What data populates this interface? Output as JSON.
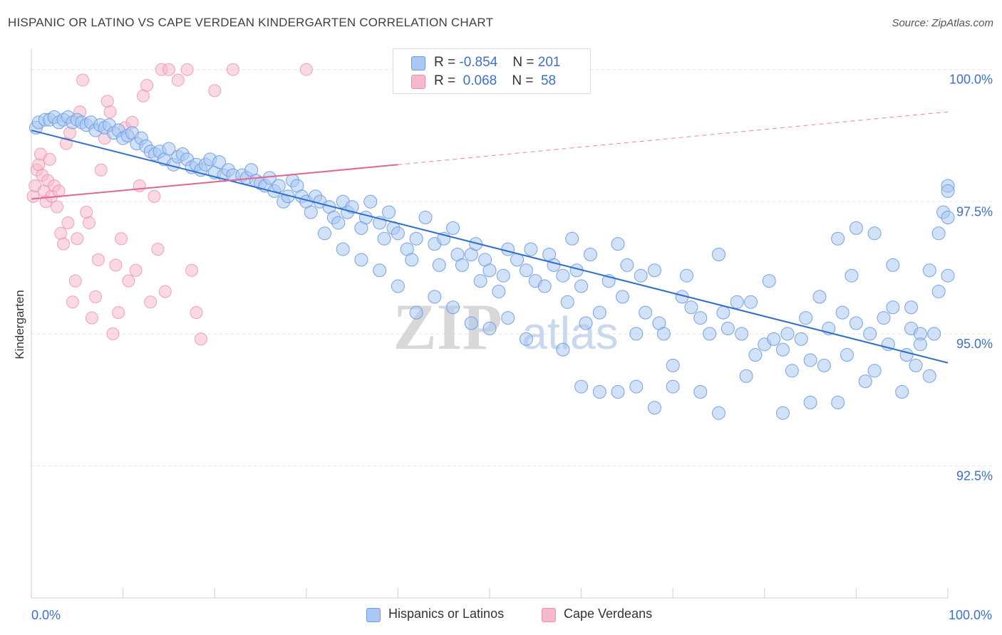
{
  "title": "HISPANIC OR LATINO VS CAPE VERDEAN KINDERGARTEN CORRELATION CHART",
  "source": "Source: ZipAtlas.com",
  "watermark": {
    "zip": "ZIP",
    "atlas": "atlas"
  },
  "legend": {
    "rows": [
      {
        "r_label": "R = ",
        "r_value": "-0.854",
        "n_label": "N = ",
        "n_value": "201"
      },
      {
        "r_label": "R = ",
        "r_value": " 0.068",
        "n_label": "N = ",
        "n_value": " 58"
      }
    ]
  },
  "bottom_legend": [
    "Hispanics or Latinos",
    "Cape Verdeans"
  ],
  "colors": {
    "blue_fill": "#a9c8f3",
    "blue_stroke": "#6c9ae0",
    "blue_line": "#2e6ecf",
    "pink_fill": "#f6b9cb",
    "pink_stroke": "#ec8eab",
    "pink_line": "#e06791",
    "tick_label": "#3d6fd0",
    "grid": "#e3e3e3"
  },
  "chart_data": {
    "type": "scatter",
    "title": "HISPANIC OR LATINO VS CAPE VERDEAN KINDERGARTEN CORRELATION CHART",
    "xlabel": "",
    "ylabel": "Kindergarten",
    "xlim": [
      0,
      100
    ],
    "ylim": [
      90.0,
      100.4
    ],
    "x_tick_labels": [
      {
        "value": 0,
        "label": "0.0%"
      },
      {
        "value": 100,
        "label": "100.0%"
      }
    ],
    "y_ticks": [
      {
        "value": 100.0,
        "label": "100.0%"
      },
      {
        "value": 97.5,
        "label": "97.5%"
      },
      {
        "value": 95.0,
        "label": "95.0%"
      },
      {
        "value": 92.5,
        "label": "92.5%"
      }
    ],
    "grid": true,
    "legend_placement": "top-center",
    "series": [
      {
        "name": "Hispanics or Latinos",
        "r": -0.854,
        "n": 201,
        "trend": {
          "x": [
            0,
            100
          ],
          "y": [
            98.85,
            94.45
          ]
        },
        "points": [
          [
            0.5,
            98.9
          ],
          [
            0.8,
            99.0
          ],
          [
            1.5,
            99.05
          ],
          [
            2,
            99.05
          ],
          [
            2.5,
            99.1
          ],
          [
            3,
            99.0
          ],
          [
            3.5,
            99.05
          ],
          [
            4,
            99.1
          ],
          [
            4.5,
            99.0
          ],
          [
            5,
            99.05
          ],
          [
            5.5,
            99.0
          ],
          [
            6,
            98.95
          ],
          [
            6.5,
            99.0
          ],
          [
            7,
            98.85
          ],
          [
            7.5,
            98.95
          ],
          [
            8,
            98.9
          ],
          [
            8.5,
            98.95
          ],
          [
            9,
            98.8
          ],
          [
            9.5,
            98.85
          ],
          [
            10,
            98.7
          ],
          [
            10.5,
            98.75
          ],
          [
            11,
            98.8
          ],
          [
            11.5,
            98.6
          ],
          [
            12,
            98.7
          ],
          [
            12.5,
            98.55
          ],
          [
            13,
            98.45
          ],
          [
            13.5,
            98.4
          ],
          [
            14,
            98.45
          ],
          [
            14.5,
            98.3
          ],
          [
            15,
            98.5
          ],
          [
            15.5,
            98.2
          ],
          [
            16,
            98.35
          ],
          [
            16.5,
            98.4
          ],
          [
            17,
            98.3
          ],
          [
            17.5,
            98.15
          ],
          [
            18,
            98.2
          ],
          [
            18.5,
            98.1
          ],
          [
            19,
            98.2
          ],
          [
            19.5,
            98.3
          ],
          [
            20,
            98.05
          ],
          [
            20.5,
            98.25
          ],
          [
            21,
            98.0
          ],
          [
            21.5,
            98.1
          ],
          [
            22,
            98.0
          ],
          [
            23,
            98.0
          ],
          [
            23.5,
            97.95
          ],
          [
            24,
            98.1
          ],
          [
            24.5,
            97.9
          ],
          [
            25,
            97.85
          ],
          [
            25.5,
            97.8
          ],
          [
            26,
            97.95
          ],
          [
            26.5,
            97.7
          ],
          [
            27,
            97.8
          ],
          [
            27.5,
            97.5
          ],
          [
            28,
            97.6
          ],
          [
            28.5,
            97.9
          ],
          [
            29,
            97.8
          ],
          [
            29.5,
            97.6
          ],
          [
            30,
            97.5
          ],
          [
            30.5,
            97.3
          ],
          [
            31,
            97.6
          ],
          [
            31.5,
            97.5
          ],
          [
            32,
            96.9
          ],
          [
            32.5,
            97.4
          ],
          [
            33,
            97.2
          ],
          [
            33.5,
            97.1
          ],
          [
            34,
            97.5
          ],
          [
            34.5,
            97.3
          ],
          [
            35,
            97.4
          ],
          [
            36,
            97.0
          ],
          [
            36.5,
            97.2
          ],
          [
            37,
            97.5
          ],
          [
            38,
            97.1
          ],
          [
            38.5,
            96.8
          ],
          [
            39,
            97.3
          ],
          [
            39.5,
            97.0
          ],
          [
            40,
            96.9
          ],
          [
            41,
            96.6
          ],
          [
            41.5,
            96.4
          ],
          [
            42,
            96.8
          ],
          [
            43,
            97.2
          ],
          [
            44,
            96.7
          ],
          [
            44.5,
            96.3
          ],
          [
            45,
            96.8
          ],
          [
            46,
            97.0
          ],
          [
            46.5,
            96.5
          ],
          [
            47,
            96.3
          ],
          [
            48,
            96.5
          ],
          [
            48.5,
            96.7
          ],
          [
            49,
            96.0
          ],
          [
            49.5,
            96.4
          ],
          [
            50,
            96.2
          ],
          [
            51,
            95.8
          ],
          [
            51.5,
            96.1
          ],
          [
            52,
            96.6
          ],
          [
            53,
            96.4
          ],
          [
            54,
            96.2
          ],
          [
            54.5,
            96.6
          ],
          [
            55,
            96.0
          ],
          [
            56,
            95.9
          ],
          [
            56.5,
            96.5
          ],
          [
            57,
            96.3
          ],
          [
            58,
            96.1
          ],
          [
            58.5,
            95.6
          ],
          [
            59,
            96.8
          ],
          [
            59.5,
            96.2
          ],
          [
            60,
            95.9
          ],
          [
            60.5,
            95.2
          ],
          [
            61,
            96.5
          ],
          [
            62,
            95.4
          ],
          [
            63,
            96.0
          ],
          [
            64,
            96.7
          ],
          [
            64.5,
            95.7
          ],
          [
            65,
            96.3
          ],
          [
            66,
            95.0
          ],
          [
            66.5,
            96.1
          ],
          [
            67,
            95.4
          ],
          [
            68,
            96.2
          ],
          [
            68.5,
            95.2
          ],
          [
            69,
            95.0
          ],
          [
            70,
            94.4
          ],
          [
            71,
            95.7
          ],
          [
            71.5,
            96.1
          ],
          [
            72,
            95.5
          ],
          [
            73,
            95.3
          ],
          [
            74,
            95.0
          ],
          [
            75,
            96.5
          ],
          [
            75.5,
            95.4
          ],
          [
            76,
            95.1
          ],
          [
            77,
            95.6
          ],
          [
            77.5,
            95.0
          ],
          [
            78,
            94.2
          ],
          [
            78.5,
            95.6
          ],
          [
            79,
            94.6
          ],
          [
            80,
            94.8
          ],
          [
            80.5,
            96.0
          ],
          [
            81,
            94.9
          ],
          [
            82,
            94.7
          ],
          [
            82.5,
            95.0
          ],
          [
            83,
            94.3
          ],
          [
            84,
            94.9
          ],
          [
            84.5,
            95.3
          ],
          [
            85,
            94.5
          ],
          [
            86,
            95.7
          ],
          [
            86.5,
            94.4
          ],
          [
            87,
            95.1
          ],
          [
            88,
            93.7
          ],
          [
            88.5,
            95.4
          ],
          [
            89,
            94.6
          ],
          [
            89.5,
            96.1
          ],
          [
            90,
            95.2
          ],
          [
            91,
            94.1
          ],
          [
            91.5,
            95.0
          ],
          [
            92,
            94.3
          ],
          [
            93,
            95.3
          ],
          [
            93.5,
            94.8
          ],
          [
            94,
            95.5
          ],
          [
            95,
            93.9
          ],
          [
            95.5,
            94.6
          ],
          [
            96,
            95.1
          ],
          [
            96.5,
            94.4
          ],
          [
            97,
            95.0
          ],
          [
            98,
            94.2
          ],
          [
            98.5,
            95.0
          ],
          [
            99,
            96.9
          ],
          [
            99.5,
            97.3
          ],
          [
            100,
            97.2
          ],
          [
            100,
            96.1
          ],
          [
            100,
            97.8
          ],
          [
            100,
            97.7
          ],
          [
            75,
            93.5
          ],
          [
            73,
            93.9
          ],
          [
            70,
            94.0
          ],
          [
            68,
            93.6
          ],
          [
            66,
            94.0
          ],
          [
            64,
            93.9
          ],
          [
            62,
            93.9
          ],
          [
            60,
            94.0
          ],
          [
            58,
            94.7
          ],
          [
            54,
            94.9
          ],
          [
            52,
            95.3
          ],
          [
            50,
            95.1
          ],
          [
            48,
            95.2
          ],
          [
            46,
            95.5
          ],
          [
            44,
            95.7
          ],
          [
            42,
            95.4
          ],
          [
            40,
            95.9
          ],
          [
            38,
            96.2
          ],
          [
            36,
            96.4
          ],
          [
            34,
            96.6
          ],
          [
            82,
            93.5
          ],
          [
            85,
            93.7
          ],
          [
            88,
            96.8
          ],
          [
            90,
            97.0
          ],
          [
            92,
            96.9
          ],
          [
            94,
            96.3
          ],
          [
            96,
            95.5
          ],
          [
            97,
            94.8
          ],
          [
            98,
            96.2
          ],
          [
            99,
            95.8
          ]
        ]
      },
      {
        "name": "Cape Verdeans",
        "r": 0.068,
        "n": 58,
        "trend": {
          "x": [
            0,
            40
          ],
          "y": [
            97.55,
            98.2
          ]
        },
        "trend_dashed": {
          "x": [
            40,
            100
          ],
          "y": [
            98.2,
            99.2
          ]
        },
        "points": [
          [
            0.2,
            97.6
          ],
          [
            0.4,
            97.8
          ],
          [
            0.6,
            98.1
          ],
          [
            0.8,
            98.2
          ],
          [
            1.0,
            98.4
          ],
          [
            1.2,
            98.0
          ],
          [
            1.4,
            97.7
          ],
          [
            1.6,
            97.5
          ],
          [
            1.8,
            97.9
          ],
          [
            2.0,
            98.3
          ],
          [
            2.2,
            97.6
          ],
          [
            2.5,
            97.8
          ],
          [
            2.8,
            97.4
          ],
          [
            3.0,
            97.7
          ],
          [
            3.2,
            96.9
          ],
          [
            3.5,
            96.7
          ],
          [
            3.8,
            98.6
          ],
          [
            4.0,
            97.1
          ],
          [
            4.2,
            98.8
          ],
          [
            4.5,
            95.6
          ],
          [
            4.8,
            96.0
          ],
          [
            5.0,
            96.8
          ],
          [
            5.3,
            99.2
          ],
          [
            5.6,
            99.8
          ],
          [
            6.0,
            97.3
          ],
          [
            6.3,
            97.1
          ],
          [
            6.6,
            95.3
          ],
          [
            7.0,
            95.7
          ],
          [
            7.3,
            96.4
          ],
          [
            7.6,
            98.1
          ],
          [
            8.0,
            98.7
          ],
          [
            8.3,
            99.4
          ],
          [
            8.6,
            99.2
          ],
          [
            8.9,
            95.0
          ],
          [
            9.2,
            96.3
          ],
          [
            9.5,
            95.4
          ],
          [
            9.8,
            96.8
          ],
          [
            10.2,
            98.9
          ],
          [
            10.6,
            96.0
          ],
          [
            11.0,
            99.0
          ],
          [
            11.4,
            96.2
          ],
          [
            11.8,
            97.8
          ],
          [
            12.2,
            99.5
          ],
          [
            12.6,
            99.7
          ],
          [
            13.0,
            95.6
          ],
          [
            13.4,
            97.6
          ],
          [
            13.8,
            96.6
          ],
          [
            14.2,
            100.0
          ],
          [
            14.6,
            95.8
          ],
          [
            15.0,
            100.0
          ],
          [
            16.0,
            99.8
          ],
          [
            17.0,
            100.0
          ],
          [
            17.5,
            96.2
          ],
          [
            18.0,
            95.4
          ],
          [
            18.5,
            94.9
          ],
          [
            20.0,
            99.6
          ],
          [
            22.0,
            100.0
          ],
          [
            30.0,
            100.0
          ]
        ]
      }
    ]
  }
}
